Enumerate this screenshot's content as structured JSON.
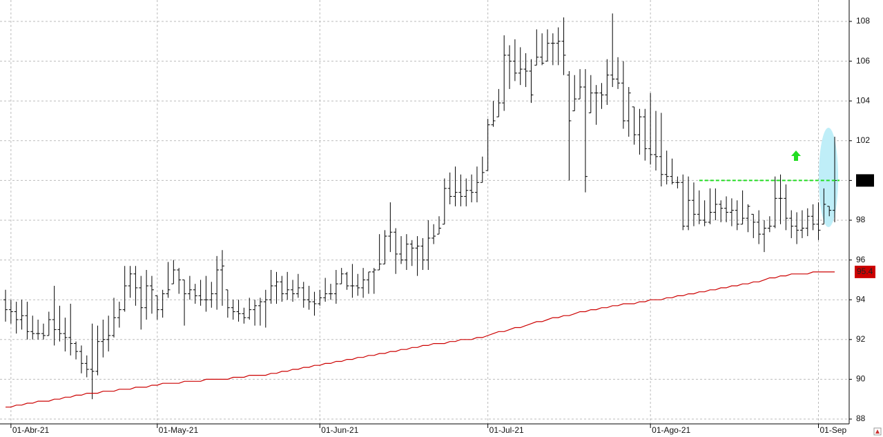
{
  "chart_data": {
    "type": "ohlc",
    "categories": [
      null,
      "01-Abr-21",
      null,
      null,
      null,
      null,
      null,
      null,
      null,
      null,
      null,
      null,
      null,
      null,
      null,
      null,
      null,
      null,
      null,
      null,
      null,
      null,
      null,
      null,
      null,
      null,
      null,
      null,
      "01-May-21",
      null,
      null,
      null,
      null,
      null,
      null,
      null,
      null,
      null,
      null,
      null,
      null,
      null,
      null,
      null,
      null,
      null,
      null,
      null,
      null,
      null,
      null,
      null,
      null,
      null,
      null,
      null,
      null,
      null,
      "01-Jun-21",
      null,
      null,
      null,
      null,
      null,
      null,
      null,
      null,
      null,
      null,
      null,
      null,
      null,
      null,
      null,
      null,
      null,
      null,
      null,
      null,
      null,
      null,
      null,
      null,
      null,
      null,
      null,
      null,
      null,
      null,
      "01-Jul-21",
      null,
      null,
      null,
      null,
      null,
      null,
      null,
      null,
      null,
      null,
      null,
      null,
      null,
      null,
      null,
      null,
      null,
      null,
      null,
      null,
      null,
      null,
      null,
      null,
      null,
      null,
      null,
      null,
      null,
      "01-Ago-21",
      null,
      null,
      null,
      null,
      null,
      null,
      null,
      null,
      null,
      null,
      null,
      null,
      null,
      null,
      null,
      null,
      null,
      null,
      null,
      null,
      null,
      null,
      null,
      null,
      null,
      null,
      null,
      null,
      null,
      null,
      "01-Sep",
      null,
      null,
      null
    ],
    "open": [
      94.0,
      93.5,
      93.4,
      93.0,
      93.2,
      92.4,
      92.3,
      92.3,
      92.2,
      93.0,
      92.5,
      92.3,
      92.1,
      91.8,
      91.4,
      90.8,
      90.5,
      90.4,
      91.9,
      92.0,
      92.2,
      93.1,
      93.5,
      94.7,
      95.3,
      94.6,
      93.6,
      94.7,
      94.2,
      93.5,
      94.3,
      94.8,
      95.5,
      95.0,
      94.3,
      94.5,
      94.2,
      94.0,
      94.0,
      94.3,
      95.5,
      94.5,
      93.6,
      93.4,
      93.3,
      93.1,
      93.5,
      93.7,
      93.9,
      94.0,
      94.7,
      94.9,
      94.3,
      94.5,
      94.3,
      94.6,
      94.0,
      93.9,
      93.8,
      94.1,
      94.3,
      94.3,
      94.8,
      95.3,
      94.7,
      94.7,
      94.6,
      95.0,
      95.4,
      95.5,
      95.8,
      97.2,
      97.4,
      96.3,
      96.0,
      96.8,
      96.6,
      96.7,
      96.0,
      97.1,
      97.3,
      97.8,
      99.6,
      99.2,
      99.4,
      99.2,
      99.5,
      99.4,
      99.9,
      100.5,
      102.8,
      103.2,
      103.9,
      106.3,
      106.0,
      105.4,
      105.6,
      105.5,
      105.8,
      106.2,
      106.0,
      106.9,
      106.9,
      107.0,
      105.3,
      103.5,
      104.1,
      104.7,
      103.4,
      104.4,
      104.4,
      104.3,
      105.3,
      105.1,
      104.9,
      103.0,
      103.7,
      102.3,
      103.2,
      101.6,
      101.3,
      101.2,
      100.3,
      100.2,
      99.9,
      99.9,
      97.7,
      99.0,
      98.3,
      98.0,
      97.9,
      98.4,
      98.8,
      98.6,
      98.4,
      98.5,
      97.8,
      98.1,
      98.3,
      97.9,
      97.3,
      97.6,
      97.7,
      99.1,
      99.1,
      98.1,
      97.7,
      97.5,
      97.6,
      98.2,
      97.8,
      97.8,
      98.7,
      98.5
    ],
    "high": [
      94.5,
      94.0,
      93.9,
      94.0,
      93.9,
      93.2,
      93.0,
      92.8,
      93.4,
      94.7,
      93.7,
      93.1,
      93.8,
      91.9,
      91.7,
      91.2,
      92.8,
      92.7,
      93.0,
      93.2,
      94.1,
      93.9,
      95.7,
      95.7,
      95.7,
      95.2,
      95.5,
      95.2,
      94.2,
      94.5,
      95.9,
      96.0,
      95.6,
      95.0,
      95.2,
      94.8,
      95.0,
      95.2,
      94.9,
      96.2,
      96.5,
      94.5,
      94.0,
      94.0,
      93.6,
      94.1,
      94.0,
      94.1,
      94.5,
      95.5,
      95.4,
      95.2,
      95.4,
      95.0,
      95.3,
      94.9,
      94.7,
      94.4,
      94.5,
      95.1,
      94.8,
      95.5,
      95.6,
      95.4,
      95.8,
      95.3,
      95.6,
      95.4,
      95.6,
      97.3,
      97.5,
      98.9,
      97.6,
      97.2,
      97.3,
      97.0,
      97.2,
      97.1,
      98.0,
      97.8,
      98.2,
      100.1,
      100.4,
      100.7,
      100.3,
      100.1,
      100.3,
      100.7,
      101.2,
      103.1,
      104.0,
      104.6,
      107.3,
      106.8,
      107.1,
      106.7,
      106.4,
      106.1,
      107.6,
      107.4,
      107.6,
      107.4,
      107.7,
      108.2,
      105.5,
      105.3,
      105.6,
      105.6,
      105.3,
      104.8,
      104.9,
      106.1,
      108.4,
      106.2,
      106.0,
      104.7,
      103.7,
      103.6,
      103.6,
      104.4,
      103.5,
      103.4,
      101.5,
      101.1,
      100.2,
      100.3,
      100.2,
      99.9,
      99.5,
      99.0,
      99.6,
      99.6,
      99.0,
      99.2,
      99.1,
      99.0,
      99.5,
      98.8,
      98.3,
      98.5,
      98.0,
      98.2,
      100.2,
      100.3,
      99.8,
      98.5,
      98.4,
      98.5,
      98.6,
      98.8,
      98.9,
      99.6,
      98.7,
      102.2
    ],
    "low": [
      92.9,
      92.8,
      92.3,
      92.5,
      92.0,
      92.0,
      92.0,
      92.0,
      92.2,
      91.7,
      91.9,
      91.4,
      91.2,
      91.0,
      90.3,
      90.1,
      89.0,
      90.2,
      91.1,
      91.4,
      92.1,
      92.6,
      93.4,
      94.1,
      93.7,
      92.5,
      93.0,
      93.3,
      93.0,
      93.1,
      94.1,
      94.8,
      94.3,
      92.7,
      94.0,
      93.8,
      93.7,
      93.4,
      93.6,
      93.5,
      93.7,
      93.1,
      93.0,
      92.9,
      92.8,
      93.0,
      92.7,
      92.7,
      92.6,
      93.8,
      93.8,
      93.9,
      94.0,
      93.9,
      94.1,
      93.6,
      93.5,
      93.2,
      93.7,
      93.9,
      94.0,
      93.8,
      94.8,
      94.5,
      94.1,
      94.2,
      94.1,
      94.3,
      94.3,
      95.5,
      95.8,
      96.4,
      95.3,
      95.8,
      95.5,
      95.7,
      95.2,
      95.5,
      95.5,
      96.8,
      97.3,
      97.8,
      98.8,
      98.7,
      98.7,
      98.7,
      98.9,
      98.9,
      99.9,
      100.5,
      102.7,
      103.2,
      103.5,
      104.6,
      105.0,
      104.8,
      104.7,
      103.9,
      105.8,
      105.8,
      106.0,
      105.8,
      105.8,
      105.3,
      100.0,
      103.5,
      104.1,
      99.4,
      103.4,
      102.8,
      103.6,
      103.8,
      104.7,
      104.6,
      102.6,
      102.2,
      101.8,
      101.3,
      101.0,
      100.8,
      100.5,
      99.7,
      99.8,
      99.8,
      99.6,
      97.5,
      97.5,
      97.7,
      97.8,
      97.7,
      97.8,
      98.0,
      97.9,
      97.9,
      97.7,
      97.5,
      97.8,
      97.4,
      97.1,
      96.8,
      96.4,
      97.4,
      97.6,
      97.8,
      97.5,
      97.1,
      96.8,
      97.1,
      97.2,
      97.5,
      97.0,
      97.8,
      98.2,
      97.9
    ],
    "close": [
      93.5,
      93.4,
      93.0,
      93.2,
      92.4,
      92.3,
      92.3,
      92.2,
      93.0,
      92.5,
      92.3,
      92.1,
      91.8,
      91.4,
      90.8,
      90.5,
      90.4,
      91.9,
      92.0,
      92.2,
      93.1,
      93.5,
      94.7,
      95.3,
      94.6,
      93.6,
      94.7,
      94.5,
      93.5,
      94.3,
      94.5,
      95.5,
      95.0,
      94.3,
      94.5,
      94.2,
      94.0,
      94.0,
      94.3,
      95.5,
      95.7,
      93.6,
      93.4,
      93.3,
      93.1,
      93.5,
      93.7,
      93.9,
      94.0,
      94.7,
      94.9,
      94.3,
      94.5,
      94.3,
      94.6,
      94.0,
      93.9,
      93.8,
      94.1,
      94.3,
      94.3,
      94.8,
      95.3,
      94.7,
      94.7,
      94.6,
      95.0,
      95.4,
      95.5,
      95.8,
      97.2,
      97.4,
      96.3,
      96.0,
      96.8,
      96.6,
      96.7,
      96.0,
      97.1,
      97.2,
      97.6,
      99.6,
      99.2,
      99.4,
      99.2,
      99.5,
      99.4,
      99.9,
      100.4,
      102.8,
      103.0,
      103.9,
      106.3,
      106.0,
      105.4,
      105.6,
      105.5,
      104.3,
      106.2,
      105.9,
      106.9,
      106.9,
      107.0,
      106.3,
      103.0,
      104.1,
      104.7,
      100.2,
      104.4,
      104.4,
      104.3,
      105.3,
      105.1,
      104.9,
      103.0,
      104.4,
      102.3,
      103.2,
      101.6,
      101.3,
      101.2,
      100.3,
      100.2,
      99.9,
      99.9,
      97.7,
      99.0,
      98.3,
      98.0,
      97.9,
      98.4,
      98.8,
      98.6,
      98.4,
      98.5,
      97.8,
      98.1,
      98.7,
      97.9,
      97.3,
      97.6,
      97.7,
      99.1,
      99.1,
      98.1,
      97.7,
      97.5,
      97.6,
      98.2,
      97.8,
      97.5,
      98.8,
      98.5,
      100.0
    ],
    "bar_color": "#000000",
    "ma": {
      "color": "#cc0000",
      "values": [
        88.6,
        88.6,
        88.7,
        88.7,
        88.8,
        88.8,
        88.9,
        88.9,
        88.9,
        89.0,
        89.0,
        89.1,
        89.1,
        89.2,
        89.2,
        89.3,
        89.3,
        89.3,
        89.4,
        89.4,
        89.4,
        89.5,
        89.5,
        89.5,
        89.6,
        89.6,
        89.6,
        89.7,
        89.7,
        89.8,
        89.8,
        89.8,
        89.8,
        89.9,
        89.9,
        89.9,
        89.9,
        90.0,
        90.0,
        90.0,
        90.0,
        90.0,
        90.1,
        90.1,
        90.1,
        90.2,
        90.2,
        90.2,
        90.2,
        90.3,
        90.3,
        90.4,
        90.4,
        90.5,
        90.5,
        90.6,
        90.6,
        90.7,
        90.7,
        90.8,
        90.8,
        90.9,
        90.9,
        91.0,
        91.0,
        91.1,
        91.1,
        91.2,
        91.2,
        91.3,
        91.3,
        91.4,
        91.4,
        91.5,
        91.5,
        91.6,
        91.6,
        91.7,
        91.7,
        91.8,
        91.8,
        91.8,
        91.9,
        91.9,
        92.0,
        92.0,
        92.0,
        92.1,
        92.1,
        92.2,
        92.3,
        92.4,
        92.4,
        92.5,
        92.6,
        92.6,
        92.7,
        92.8,
        92.9,
        92.9,
        93.0,
        93.1,
        93.1,
        93.2,
        93.2,
        93.3,
        93.4,
        93.4,
        93.5,
        93.5,
        93.6,
        93.6,
        93.7,
        93.7,
        93.8,
        93.8,
        93.8,
        93.9,
        93.9,
        94.0,
        94.0,
        94.0,
        94.1,
        94.1,
        94.2,
        94.2,
        94.3,
        94.3,
        94.4,
        94.4,
        94.5,
        94.5,
        94.6,
        94.6,
        94.7,
        94.7,
        94.8,
        94.8,
        94.9,
        94.9,
        95.0,
        95.1,
        95.1,
        95.2,
        95.2,
        95.3,
        95.3,
        95.3,
        95.3,
        95.4,
        95.4,
        95.4,
        95.4,
        95.4
      ]
    },
    "reference_line": {
      "value": 100,
      "color": "#22dd22"
    },
    "ylim": [
      88,
      108
    ],
    "yticks": [
      88,
      90,
      92,
      94,
      96,
      98,
      100,
      102,
      104,
      106,
      108
    ],
    "grid": true
  }
}
